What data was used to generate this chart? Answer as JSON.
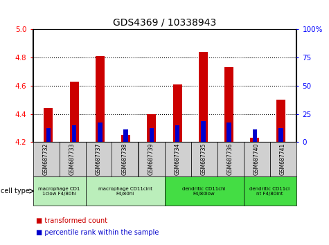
{
  "title": "GDS4369 / 10338943",
  "samples": [
    "GSM687732",
    "GSM687733",
    "GSM687737",
    "GSM687738",
    "GSM687739",
    "GSM687734",
    "GSM687735",
    "GSM687736",
    "GSM687740",
    "GSM687741"
  ],
  "red_values": [
    4.44,
    4.63,
    4.81,
    4.25,
    4.4,
    4.61,
    4.84,
    4.73,
    4.23,
    4.5
  ],
  "blue_values": [
    4.3,
    4.32,
    4.34,
    4.29,
    4.3,
    4.32,
    4.35,
    4.34,
    4.29,
    4.3
  ],
  "ymin": 4.2,
  "ymax": 5.0,
  "y_ticks_left": [
    4.2,
    4.4,
    4.6,
    4.8,
    5.0
  ],
  "y_ticks_right": [
    0,
    25,
    50,
    75,
    100
  ],
  "right_tick_labels": [
    "0",
    "25",
    "50",
    "75",
    "100%"
  ],
  "grid_lines": [
    4.4,
    4.6,
    4.8
  ],
  "group_configs": [
    {
      "label": "macrophage CD1\n1clow F4/80hi",
      "start": 0,
      "end": 2,
      "color": "#bbeebb"
    },
    {
      "label": "macrophage CD11cint\nF4/80hi",
      "start": 2,
      "end": 5,
      "color": "#bbeebb"
    },
    {
      "label": "dendritic CD11chi\nF4/80low",
      "start": 5,
      "end": 8,
      "color": "#44dd44"
    },
    {
      "label": "dendritic CD11ci\nnt F4/80int",
      "start": 8,
      "end": 10,
      "color": "#44dd44"
    }
  ],
  "bar_width": 0.35,
  "blue_bar_width": 0.18,
  "red_color": "#cc0000",
  "blue_color": "#0000cc",
  "bg_color": "#ffffff",
  "sample_bg_color": "#d0d0d0",
  "legend_red": "transformed count",
  "legend_blue": "percentile rank within the sample",
  "cell_type_label": "cell type"
}
